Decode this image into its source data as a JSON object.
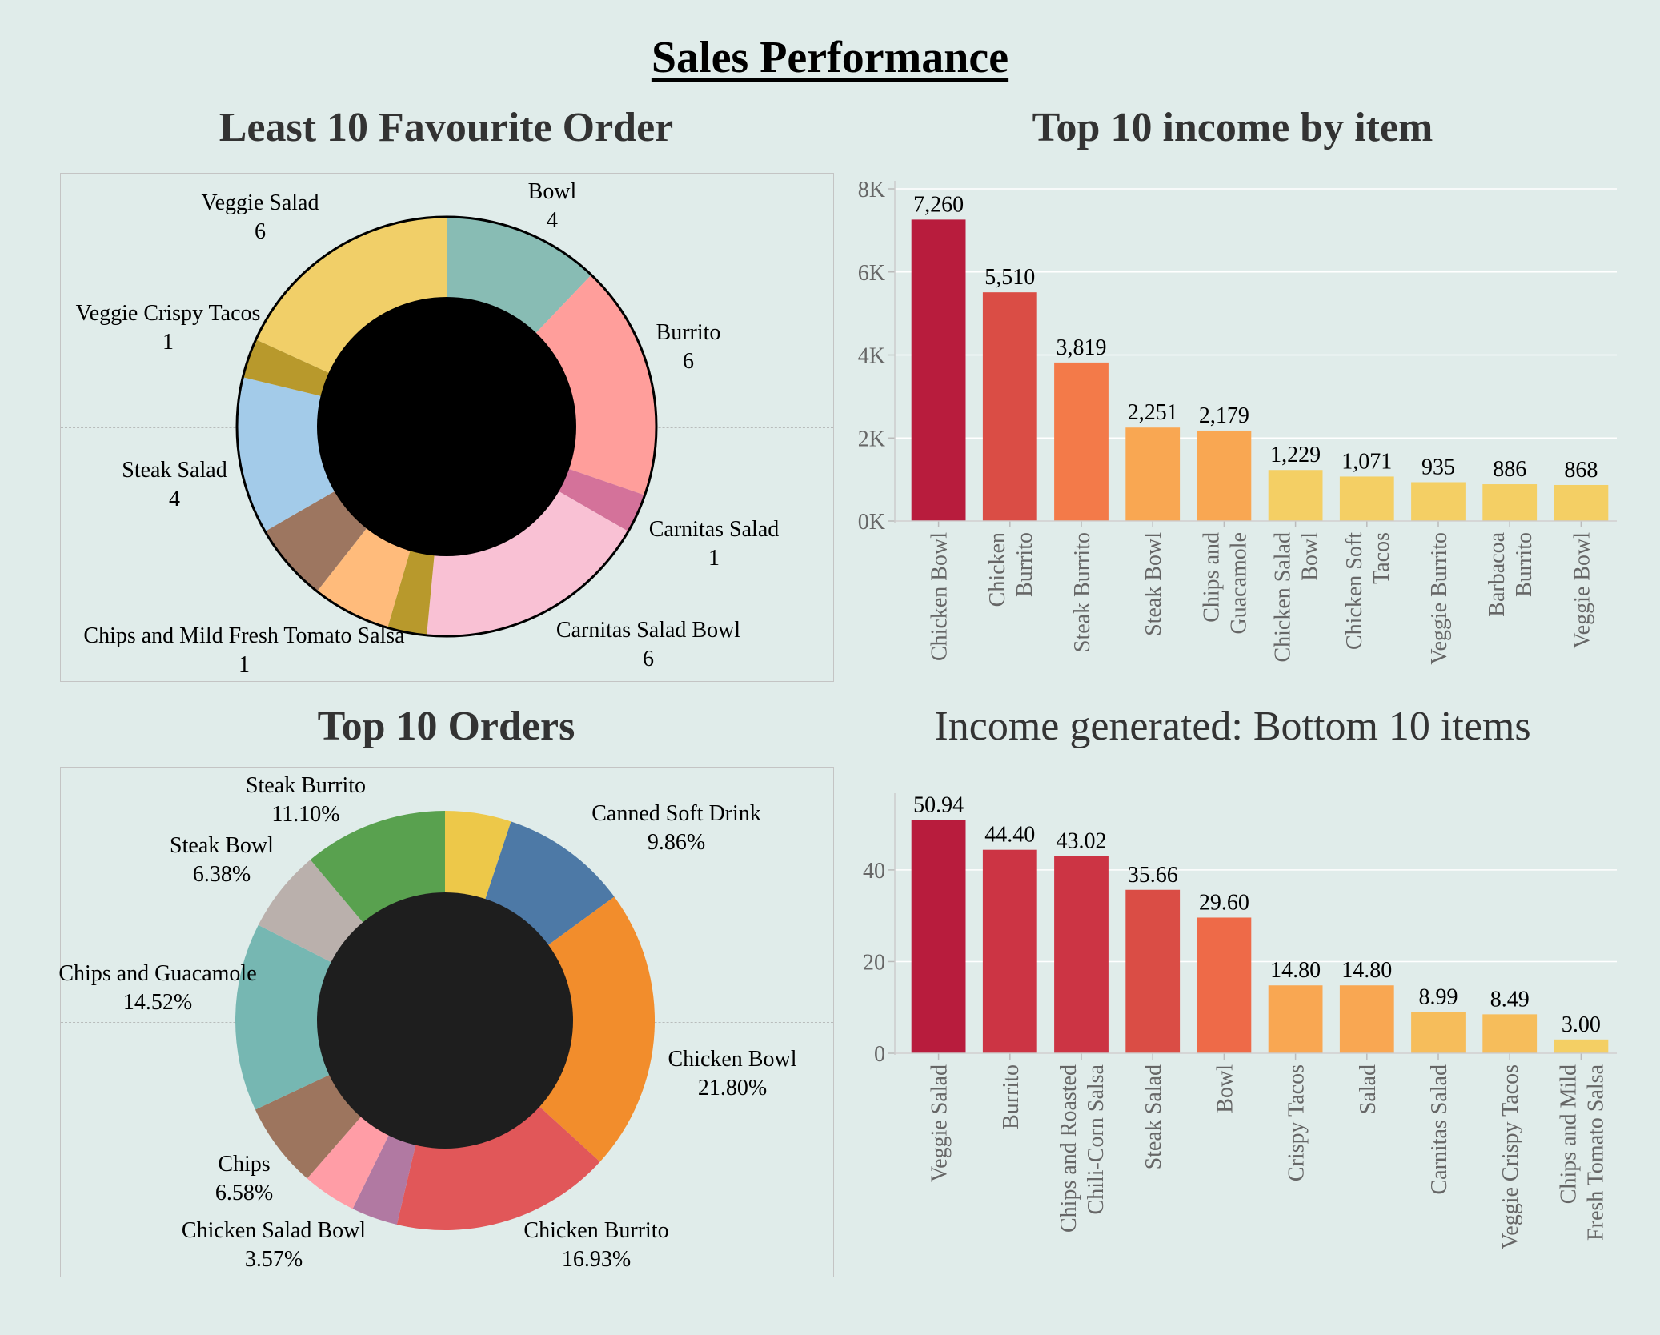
{
  "title": "Sales Performance",
  "charts": {
    "least_favourite": {
      "title": "Least 10 Favourite Order"
    },
    "top_income": {
      "title": "Top 10 income by item"
    },
    "top_orders": {
      "title": "Top 10 Orders"
    },
    "bottom_income": {
      "title": "Income generated: Bottom 10 items"
    }
  },
  "chart_data": [
    {
      "type": "pie",
      "style": "donut",
      "title": "Least 10 Favourite Order",
      "categories": [
        "Bowl",
        "Burrito",
        "Carnitas Salad",
        "Carnitas Salad Bowl",
        "Chips and Mild Fresh Tomato Salsa",
        "Steak Salad",
        "Veggie Crispy Tacos",
        "Veggie Salad"
      ],
      "values": [
        4,
        6,
        1,
        6,
        1,
        4,
        1,
        6
      ],
      "value_labels": [
        "4",
        "6",
        "1",
        "6",
        "1",
        "4",
        "1",
        "6"
      ],
      "slice_colors": [
        "#88bcb4",
        "#ff9e9b",
        "#d4729a",
        "#f9c1d4",
        "#b8992c",
        "#a3cbe9",
        "#b8992c",
        "#f1cf68"
      ],
      "extra_unlabeled_slices": [
        {
          "value": 2,
          "color": "#ffbb7b",
          "after": "Chips and Mild Fresh Tomato Salsa"
        },
        {
          "value": 2,
          "color": "#9d7660",
          "after": "Chips and Mild Fresh Tomato Salsa"
        }
      ],
      "hole_color": "#000000"
    },
    {
      "type": "bar",
      "title": "Top 10 income by item",
      "categories": [
        "Chicken Bowl",
        "Chicken Burrito",
        "Steak Burrito",
        "Steak Bowl",
        "Chips and Guacamole",
        "Chicken Salad Bowl",
        "Chicken Soft Tacos",
        "Veggie Burrito",
        "Barbacoa Burrito",
        "Veggie Bowl"
      ],
      "category_lines": [
        [
          "Chicken Bowl"
        ],
        [
          "Chicken",
          "Burrito"
        ],
        [
          "Steak Burrito"
        ],
        [
          "Steak Bowl"
        ],
        [
          "Chips and",
          "Guacamole"
        ],
        [
          "Chicken Salad",
          "Bowl"
        ],
        [
          "Chicken Soft",
          "Tacos"
        ],
        [
          "Veggie Burrito"
        ],
        [
          "Barbacoa",
          "Burrito"
        ],
        [
          "Veggie Bowl"
        ]
      ],
      "values": [
        7260,
        5510,
        3819,
        2251,
        2179,
        1229,
        1071,
        935,
        886,
        868
      ],
      "value_labels": [
        "7,260",
        "5,510",
        "3,819",
        "2,251",
        "2,179",
        "1,229",
        "1,071",
        "935",
        "886",
        "868"
      ],
      "colors": [
        "#b81c3d",
        "#da4d45",
        "#f37a49",
        "#f9a752",
        "#f9a752",
        "#f4cf64",
        "#f4cf64",
        "#f4cf64",
        "#f4cf64",
        "#f4cf64"
      ],
      "ylim": [
        0,
        8000
      ],
      "yticks": [
        0,
        2000,
        4000,
        6000,
        8000
      ],
      "ytick_labels": [
        "0K",
        "2K",
        "4K",
        "6K",
        "8K"
      ],
      "grid": true
    },
    {
      "type": "pie",
      "style": "donut",
      "title": "Top 10 Orders",
      "categories": [
        "Canned Soft Drink",
        "Chicken Bowl",
        "Chicken Burrito",
        "Chicken Salad Bowl",
        "Chips",
        "Chips and Guacamole",
        "Steak Bowl",
        "Steak Burrito"
      ],
      "values": [
        9.86,
        21.8,
        16.93,
        3.57,
        6.58,
        14.52,
        6.38,
        11.1
      ],
      "value_labels": [
        "9.86%",
        "21.80%",
        "16.93%",
        "3.57%",
        "6.58%",
        "14.52%",
        "6.38%",
        "11.10%"
      ],
      "slice_colors": [
        "#4d79a6",
        "#f28d2c",
        "#e15759",
        "#b179a2",
        "#9d755e",
        "#76b7b2",
        "#bab0ac",
        "#59a14f"
      ],
      "extra_unlabeled_slices": [
        {
          "value": 5.1,
          "color": "#edc849",
          "before": "Canned Soft Drink"
        },
        {
          "value": 4.16,
          "color": "#ff9da6",
          "after": "Chicken Salad Bowl"
        }
      ],
      "hole_color": "#1e1e1e"
    },
    {
      "type": "bar",
      "title": "Income generated: Bottom 10 items",
      "categories": [
        "Veggie Salad",
        "Burrito",
        "Chips and Roasted Chili-Corn Salsa",
        "Steak Salad",
        "Bowl",
        "Crispy Tacos",
        "Salad",
        "Carnitas Salad",
        "Veggie Crispy Tacos",
        "Chips and Mild Fresh Tomato Salsa"
      ],
      "category_lines": [
        [
          "Veggie Salad"
        ],
        [
          "Burrito"
        ],
        [
          "Chips and Roasted",
          "Chili-Corn Salsa"
        ],
        [
          "Steak Salad"
        ],
        [
          "Bowl"
        ],
        [
          "Crispy Tacos"
        ],
        [
          "Salad"
        ],
        [
          "Carnitas Salad"
        ],
        [
          "Veggie Crispy Tacos"
        ],
        [
          "Chips and Mild",
          "Fresh Tomato Salsa"
        ]
      ],
      "values": [
        50.94,
        44.4,
        43.02,
        35.66,
        29.6,
        14.8,
        14.8,
        8.99,
        8.49,
        3.0
      ],
      "value_labels": [
        "50.94",
        "44.40",
        "43.02",
        "35.66",
        "29.60",
        "14.80",
        "14.80",
        "8.99",
        "8.49",
        "3.00"
      ],
      "colors": [
        "#b81c3d",
        "#cc3444",
        "#cc3444",
        "#da4d45",
        "#ee6a48",
        "#f9a752",
        "#f9a752",
        "#f6bd5b",
        "#f6bd5b",
        "#f4cf64"
      ],
      "ylim": [
        0,
        55
      ],
      "yticks": [
        0,
        20,
        40
      ],
      "ytick_labels": [
        "0",
        "20",
        "40"
      ],
      "grid": true
    }
  ]
}
